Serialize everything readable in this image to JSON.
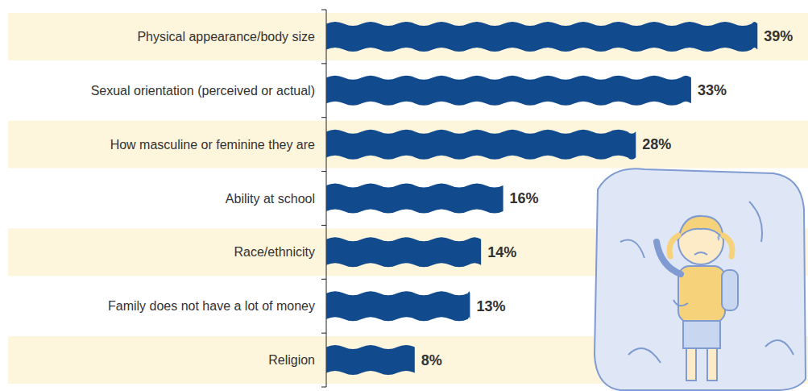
{
  "chart_data": {
    "type": "bar",
    "orientation": "horizontal",
    "categories": [
      "Physical appearance/body size",
      "Sexual orientation (perceived or actual)",
      "How masculine or feminine they are",
      "Ability at school",
      "Race/ethnicity",
      "Family does not have a lot of money",
      "Religion"
    ],
    "values": [
      39,
      33,
      28,
      16,
      14,
      13,
      8
    ],
    "value_labels": [
      "39%",
      "33%",
      "28%",
      "16%",
      "14%",
      "13%",
      "8%"
    ],
    "color": "#124a8e",
    "xlim": [
      0,
      40
    ],
    "data_labels": true,
    "tick_labels": "y",
    "grid": false
  }
}
